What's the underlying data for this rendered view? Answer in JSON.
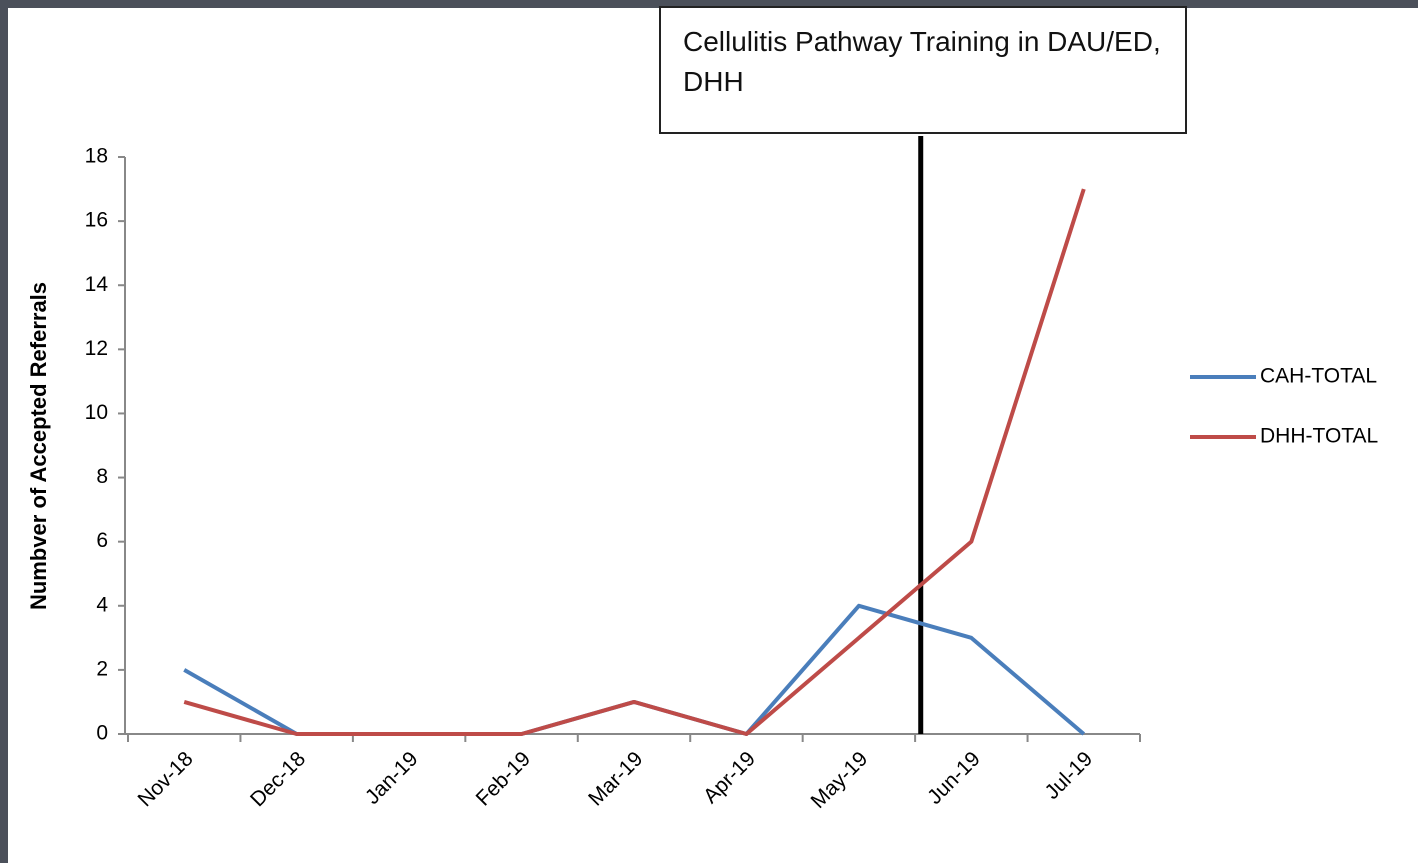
{
  "chart_data": {
    "type": "line",
    "y_label": "Numbver of Accepted Referrals",
    "annotation": "Cellulitis Pathway Training in DAU/ED, DHH",
    "categories": [
      "Nov-18",
      "Dec-18",
      "Jan-19",
      "Feb-19",
      "Mar-19",
      "Apr-19",
      "May-19",
      "Jun-19",
      "Jul-19"
    ],
    "series": [
      {
        "name": "CAH-TOTAL",
        "color": "#4a7ebb",
        "values": [
          2,
          0,
          0,
          0,
          1,
          0,
          4,
          3,
          0
        ]
      },
      {
        "name": "DHH-TOTAL",
        "color": "#be4b48",
        "values": [
          1,
          0,
          0,
          0,
          1,
          0,
          3,
          6,
          17
        ]
      }
    ],
    "ylim": [
      0,
      18
    ],
    "yticks": [
      0,
      2,
      4,
      6,
      8,
      10,
      12,
      14,
      16,
      18
    ],
    "legend": "right"
  }
}
